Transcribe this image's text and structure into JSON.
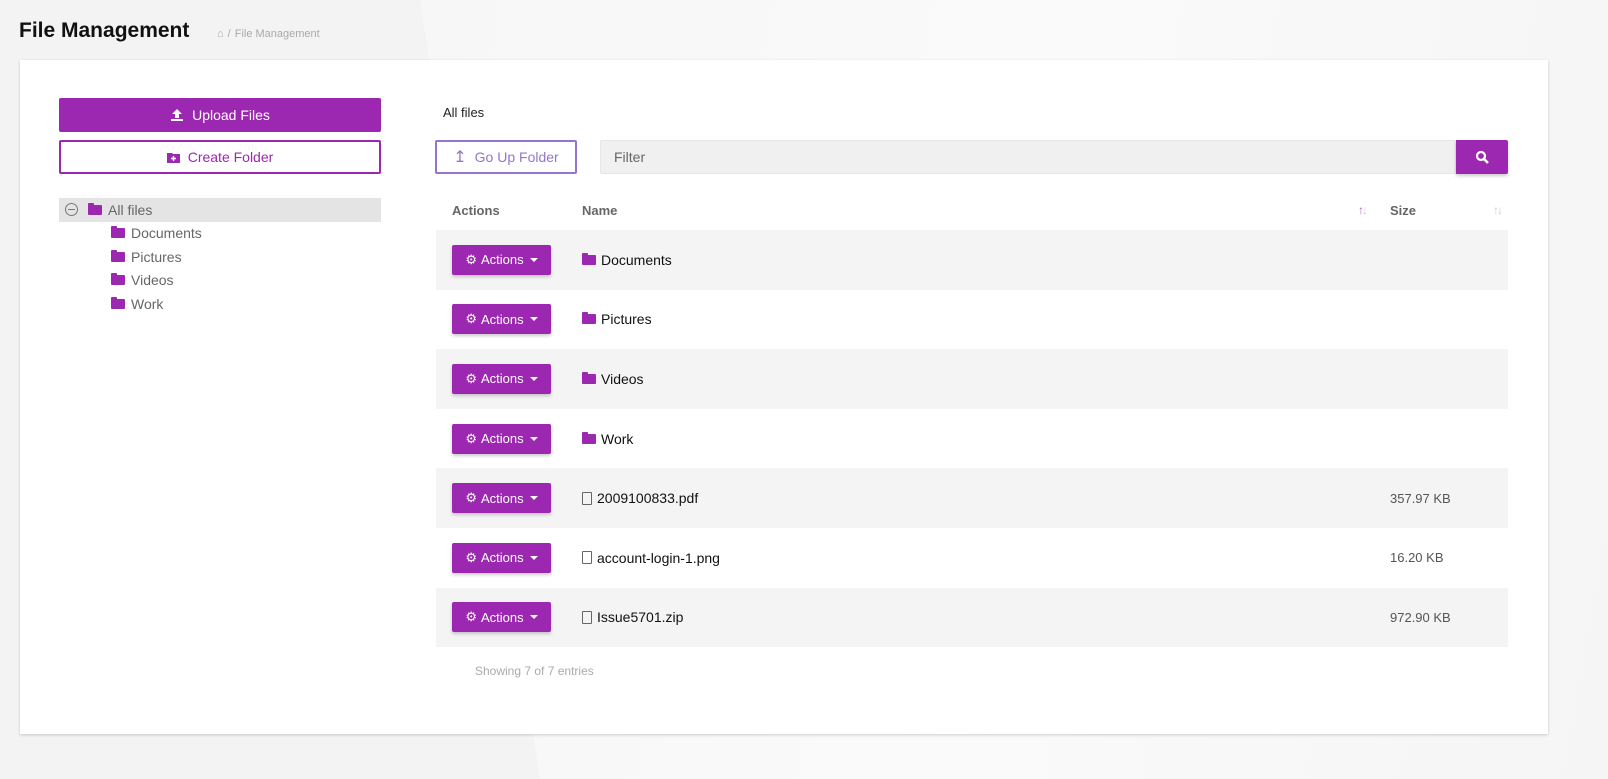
{
  "header": {
    "title": "File Management",
    "breadcrumb": {
      "home_icon": "home-icon",
      "current": "File Management"
    }
  },
  "sidebar": {
    "upload_label": "Upload Files",
    "create_folder_label": "Create Folder",
    "tree": {
      "root": "All files",
      "children": [
        "Documents",
        "Pictures",
        "Videos",
        "Work"
      ]
    }
  },
  "main": {
    "current_folder": "All files",
    "go_up_label": "Go Up Folder",
    "filter_placeholder": "Filter",
    "columns": {
      "actions": "Actions",
      "name": "Name",
      "size": "Size"
    },
    "action_label": "Actions",
    "rows": [
      {
        "name": "Documents",
        "type": "folder",
        "size": ""
      },
      {
        "name": "Pictures",
        "type": "folder",
        "size": ""
      },
      {
        "name": "Videos",
        "type": "folder",
        "size": ""
      },
      {
        "name": "Work",
        "type": "folder",
        "size": ""
      },
      {
        "name": "2009100833.pdf",
        "type": "pdf",
        "size": "357.97 KB"
      },
      {
        "name": "account-login-1.png",
        "type": "image",
        "size": "16.20 KB"
      },
      {
        "name": "Issue5701.zip",
        "type": "archive",
        "size": "972.90 KB"
      }
    ],
    "footer": "Showing 7 of 7 entries"
  },
  "colors": {
    "accent": "#9c27b0",
    "secondary": "#9575cd"
  }
}
